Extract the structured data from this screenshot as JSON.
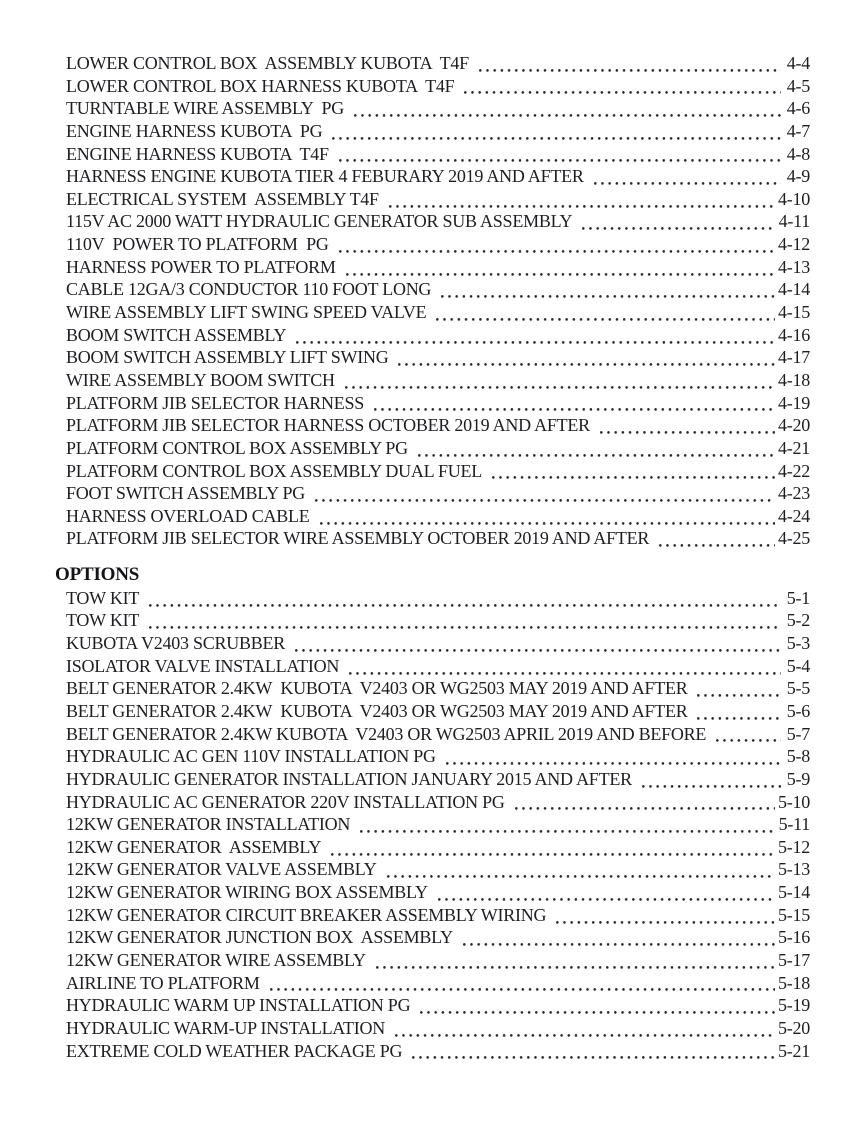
{
  "page": {
    "background_color": "#ffffff",
    "text_color": "#1d1d22"
  },
  "toc": {
    "sections": [
      {
        "heading": "",
        "entries": [
          {
            "title": "LOWER CONTROL BOX  ASSEMBLY KUBOTA  T4F",
            "page": "4-4"
          },
          {
            "title": "LOWER CONTROL BOX HARNESS KUBOTA  T4F",
            "page": "4-5"
          },
          {
            "title": "TURNTABLE WIRE ASSEMBLY  PG",
            "page": "4-6"
          },
          {
            "title": "ENGINE HARNESS KUBOTA  PG",
            "page": "4-7"
          },
          {
            "title": "ENGINE HARNESS KUBOTA  T4F",
            "page": "4-8"
          },
          {
            "title": "HARNESS ENGINE KUBOTA TIER 4 FEBURARY 2019 AND AFTER",
            "page": "4-9"
          },
          {
            "title": "ELECTRICAL SYSTEM  ASSEMBLY T4F",
            "page": "4-10"
          },
          {
            "title": "115V AC 2000 WATT HYDRAULIC GENERATOR SUB ASSEMBLY",
            "page": "4-11"
          },
          {
            "title": "110V  POWER TO PLATFORM  PG",
            "page": "4-12"
          },
          {
            "title": "HARNESS POWER TO PLATFORM",
            "page": "4-13"
          },
          {
            "title": "CABLE 12GA/3 CONDUCTOR 110 FOOT LONG",
            "page": "4-14"
          },
          {
            "title": "WIRE ASSEMBLY LIFT SWING SPEED VALVE",
            "page": "4-15"
          },
          {
            "title": "BOOM SWITCH ASSEMBLY",
            "page": "4-16"
          },
          {
            "title": "BOOM SWITCH ASSEMBLY LIFT SWING",
            "page": "4-17"
          },
          {
            "title": "WIRE ASSEMBLY BOOM SWITCH",
            "page": "4-18"
          },
          {
            "title": "PLATFORM JIB SELECTOR HARNESS",
            "page": "4-19"
          },
          {
            "title": "PLATFORM JIB SELECTOR HARNESS OCTOBER 2019 AND AFTER",
            "page": "4-20"
          },
          {
            "title": "PLATFORM CONTROL BOX ASSEMBLY PG",
            "page": "4-21"
          },
          {
            "title": "PLATFORM CONTROL BOX ASSEMBLY DUAL FUEL",
            "page": "4-22"
          },
          {
            "title": "FOOT SWITCH ASSEMBLY PG",
            "page": "4-23"
          },
          {
            "title": "HARNESS OVERLOAD CABLE",
            "page": "4-24"
          },
          {
            "title": "PLATFORM JIB SELECTOR WIRE ASSEMBLY OCTOBER 2019 AND AFTER",
            "page": "4-25"
          }
        ]
      },
      {
        "heading": "OPTIONS",
        "entries": [
          {
            "title": "TOW KIT",
            "page": "5-1"
          },
          {
            "title": "TOW KIT",
            "page": "5-2"
          },
          {
            "title": "KUBOTA V2403 SCRUBBER",
            "page": "5-3"
          },
          {
            "title": "ISOLATOR VALVE INSTALLATION",
            "page": "5-4"
          },
          {
            "title": "BELT GENERATOR 2.4KW  KUBOTA  V2403 OR WG2503 MAY 2019 AND AFTER",
            "page": "5-5"
          },
          {
            "title": "BELT GENERATOR 2.4KW  KUBOTA  V2403 OR WG2503 MAY 2019 AND AFTER",
            "page": "5-6"
          },
          {
            "title": "BELT GENERATOR 2.4KW KUBOTA  V2403 OR WG2503 APRIL 2019 AND BEFORE",
            "page": "5-7"
          },
          {
            "title": "HYDRAULIC AC GEN 110V INSTALLATION PG",
            "page": "5-8"
          },
          {
            "title": "HYDRAULIC GENERATOR INSTALLATION JANUARY 2015 AND AFTER",
            "page": "5-9"
          },
          {
            "title": "HYDRAULIC AC GENERATOR 220V INSTALLATION PG",
            "page": "5-10"
          },
          {
            "title": "12KW GENERATOR INSTALLATION",
            "page": "5-11"
          },
          {
            "title": "12KW GENERATOR  ASSEMBLY",
            "page": "5-12"
          },
          {
            "title": "12KW GENERATOR VALVE ASSEMBLY",
            "page": "5-13"
          },
          {
            "title": "12KW GENERATOR WIRING BOX ASSEMBLY",
            "page": "5-14"
          },
          {
            "title": "12KW GENERATOR CIRCUIT BREAKER ASSEMBLY WIRING",
            "page": "5-15"
          },
          {
            "title": "12KW GENERATOR JUNCTION BOX  ASSEMBLY",
            "page": "5-16"
          },
          {
            "title": "12KW GENERATOR WIRE ASSEMBLY",
            "page": "5-17"
          },
          {
            "title": "AIRLINE TO PLATFORM",
            "page": "5-18"
          },
          {
            "title": "HYDRAULIC WARM UP INSTALLATION PG",
            "page": "5-19"
          },
          {
            "title": "HYDRAULIC WARM-UP INSTALLATION",
            "page": "5-20"
          },
          {
            "title": "EXTREME COLD WEATHER PACKAGE PG",
            "page": "5-21"
          }
        ]
      }
    ]
  }
}
